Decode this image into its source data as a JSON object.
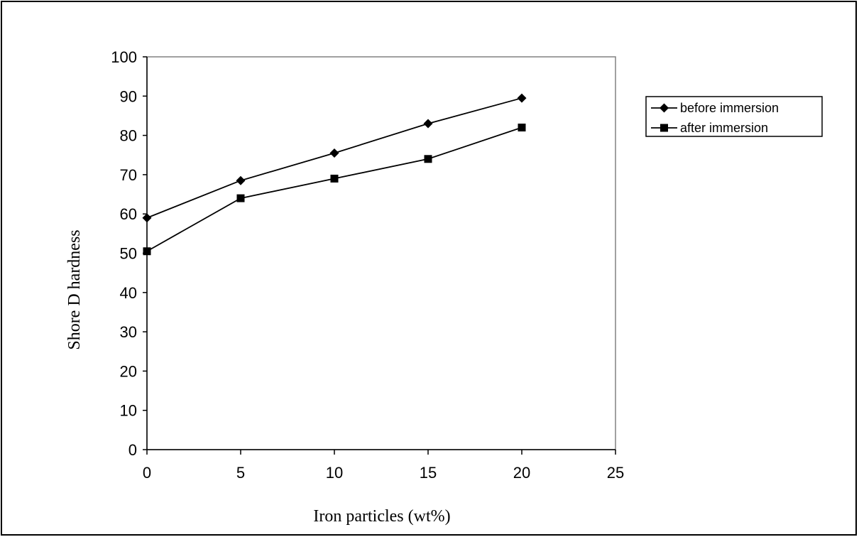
{
  "chart_data": {
    "type": "line",
    "title": "",
    "xlabel": "Iron particles (wt%)",
    "ylabel": "Shore D hardness",
    "xlim": [
      0,
      25
    ],
    "ylim": [
      0,
      100
    ],
    "xticks": [
      0,
      5,
      10,
      15,
      20,
      25
    ],
    "yticks": [
      0,
      10,
      20,
      30,
      40,
      50,
      60,
      70,
      80,
      90,
      100
    ],
    "grid": false,
    "legend_position": "right",
    "series": [
      {
        "name": "before immersion",
        "marker": "diamond",
        "color": "#000000",
        "x": [
          0,
          5,
          10,
          15,
          20
        ],
        "y": [
          59,
          68.5,
          75.5,
          83,
          89.5
        ]
      },
      {
        "name": "after immersion",
        "marker": "square",
        "color": "#000000",
        "x": [
          0,
          5,
          10,
          15,
          20
        ],
        "y": [
          50.5,
          64,
          69,
          74,
          82
        ]
      }
    ]
  }
}
